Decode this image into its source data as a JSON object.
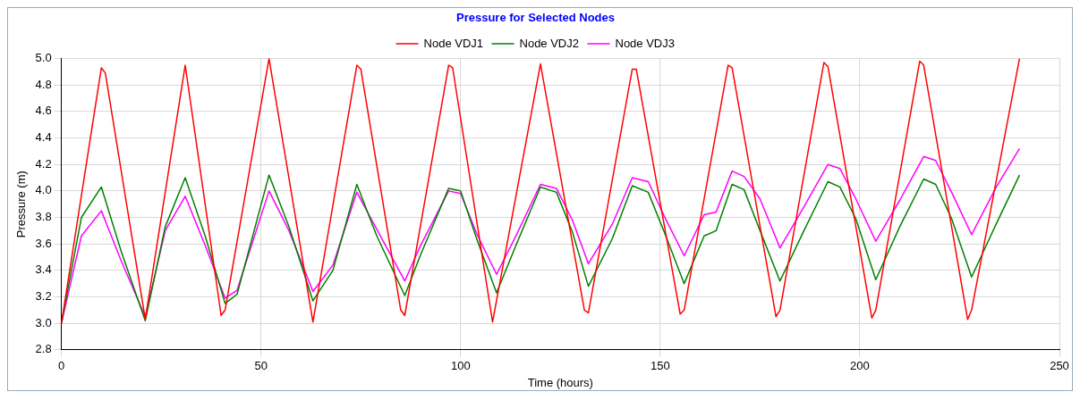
{
  "chart_data": {
    "type": "line",
    "title": "Pressure for Selected Nodes",
    "xlabel": "Time (hours)",
    "ylabel": "Pressure (m)",
    "xlim": [
      0,
      250
    ],
    "xticks": [
      0,
      50,
      100,
      150,
      200,
      250
    ],
    "ylim": [
      2.8,
      5.0
    ],
    "yticks": [
      2.8,
      {
        "value": 3,
        "label": "3.0"
      },
      3.2,
      3.4,
      3.6,
      3.8,
      {
        "value": 4,
        "label": "4.0"
      },
      4.2,
      4.4,
      4.6,
      4.8,
      {
        "value": 5,
        "label": "5.0"
      }
    ],
    "grid": true,
    "legend": "top",
    "marker": "none",
    "line_style": "solid",
    "series": [
      {
        "name": "Node VDJ1",
        "color": "#ff0000",
        "x": [
          0,
          10,
          11,
          21,
          31,
          40,
          41,
          52,
          63,
          74,
          75,
          85,
          86,
          97,
          98,
          108,
          120,
          131,
          132,
          143,
          144,
          155,
          156,
          167,
          168,
          179,
          180,
          191,
          192,
          203,
          204,
          215,
          216,
          227,
          228,
          240
        ],
        "values": [
          3.0,
          4.93,
          4.89,
          3.03,
          4.95,
          3.06,
          3.1,
          5.0,
          3.01,
          4.95,
          4.92,
          3.1,
          3.06,
          4.95,
          4.93,
          3.01,
          4.96,
          3.1,
          3.08,
          4.92,
          4.92,
          3.07,
          3.1,
          4.95,
          4.93,
          3.05,
          3.1,
          4.97,
          4.94,
          3.04,
          3.1,
          4.98,
          4.95,
          3.03,
          3.1,
          5.0
        ]
      },
      {
        "name": "Node VDJ2",
        "color": "#008000",
        "x": [
          0,
          5,
          10,
          15,
          21,
          26,
          31,
          36,
          41,
          44,
          52,
          57,
          63,
          68,
          74,
          79,
          86,
          90,
          97,
          100,
          104,
          109,
          114,
          120,
          124,
          128,
          132,
          138,
          143,
          147,
          151,
          156,
          161,
          164,
          168,
          171,
          175,
          180,
          186,
          192,
          195,
          199,
          204,
          210,
          216,
          219,
          223,
          228,
          234,
          240
        ],
        "values": [
          3.0,
          3.8,
          4.03,
          3.54,
          3.02,
          3.73,
          4.1,
          3.66,
          3.15,
          3.22,
          4.12,
          3.73,
          3.17,
          3.4,
          4.05,
          3.66,
          3.21,
          3.52,
          4.02,
          4.0,
          3.64,
          3.23,
          3.6,
          4.03,
          3.99,
          3.69,
          3.28,
          3.64,
          4.04,
          3.99,
          3.69,
          3.3,
          3.66,
          3.7,
          4.05,
          4.01,
          3.7,
          3.32,
          3.7,
          4.07,
          4.03,
          3.79,
          3.33,
          3.73,
          4.09,
          4.05,
          3.79,
          3.35,
          3.74,
          4.12
        ]
      },
      {
        "name": "Node VDJ3",
        "color": "#ff00ff",
        "x": [
          0,
          5,
          10,
          15,
          21,
          26,
          31,
          36,
          41,
          44,
          52,
          57,
          63,
          68,
          74,
          79,
          86,
          90,
          97,
          100,
          104,
          109,
          114,
          120,
          124,
          128,
          132,
          138,
          143,
          147,
          151,
          156,
          161,
          164,
          168,
          171,
          175,
          180,
          186,
          192,
          195,
          199,
          204,
          210,
          216,
          219,
          223,
          228,
          234,
          240
        ],
        "values": [
          3.0,
          3.66,
          3.85,
          3.47,
          3.05,
          3.7,
          3.96,
          3.59,
          3.19,
          3.25,
          4.0,
          3.7,
          3.24,
          3.44,
          3.99,
          3.71,
          3.32,
          3.59,
          4.0,
          3.98,
          3.68,
          3.37,
          3.67,
          4.05,
          4.02,
          3.78,
          3.45,
          3.75,
          4.1,
          4.07,
          3.81,
          3.51,
          3.82,
          3.84,
          4.15,
          4.11,
          3.94,
          3.57,
          3.88,
          4.2,
          4.17,
          3.94,
          3.62,
          3.93,
          4.26,
          4.23,
          3.99,
          3.67,
          4.02,
          4.32
        ]
      }
    ]
  }
}
